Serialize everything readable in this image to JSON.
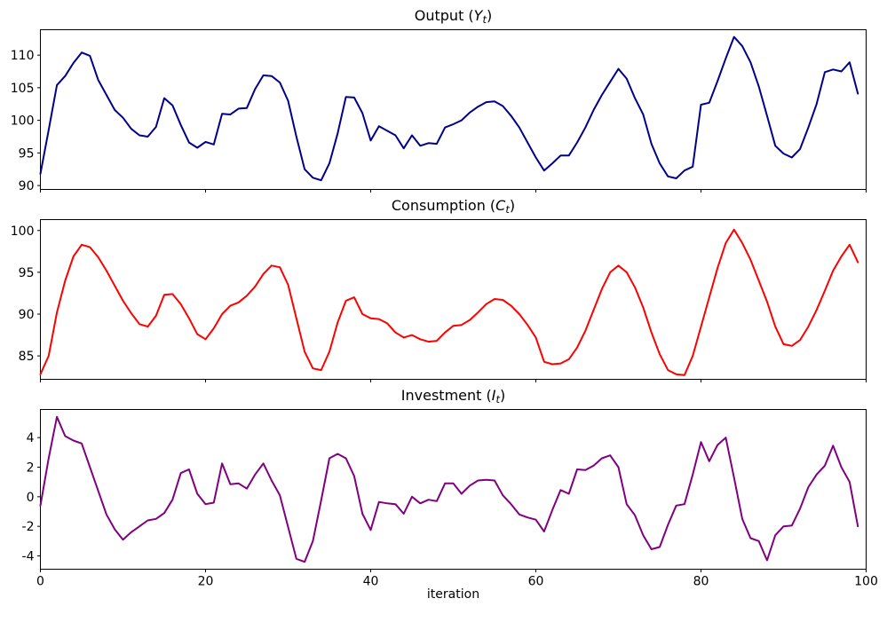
{
  "figure": {
    "background": "#ffffff",
    "border": "#000000"
  },
  "xlabel": "iteration",
  "chart_data": [
    {
      "id": "output",
      "type": "line",
      "title_prefix": "Output (",
      "title_var": "Y",
      "title_sub": "t",
      "title_suffix": ")",
      "color": "#00008b",
      "xlim": [
        0,
        100
      ],
      "ylim": [
        89.4,
        113.9
      ],
      "yticks": [
        90,
        95,
        100,
        105,
        110
      ],
      "xticks": [
        0,
        20,
        40,
        60,
        80,
        100
      ],
      "show_xtick_labels": false,
      "x_start": 0,
      "values": [
        91.8,
        98.5,
        105.4,
        106.8,
        108.8,
        110.4,
        109.9,
        106.2,
        103.9,
        101.6,
        100.4,
        98.7,
        97.7,
        97.5,
        99.0,
        103.4,
        102.3,
        99.3,
        96.6,
        95.8,
        96.7,
        96.3,
        101.0,
        100.9,
        101.8,
        101.9,
        104.8,
        106.9,
        106.8,
        105.8,
        103.0,
        97.5,
        92.5,
        91.2,
        90.8,
        93.4,
        98.0,
        103.6,
        103.5,
        101.1,
        96.9,
        99.1,
        98.4,
        97.7,
        95.7,
        97.7,
        96.1,
        96.5,
        96.4,
        98.9,
        99.4,
        100.0,
        101.2,
        102.1,
        102.8,
        102.9,
        102.2,
        100.7,
        98.9,
        96.6,
        94.3,
        92.3,
        93.4,
        94.6,
        94.6,
        96.6,
        98.9,
        101.6,
        103.9,
        105.9,
        107.9,
        106.4,
        103.4,
        100.9,
        96.4,
        93.4,
        91.4,
        91.1,
        92.3,
        92.9,
        102.4,
        102.7,
        106.0,
        109.5,
        112.8,
        111.4,
        108.9,
        105.2,
        100.7,
        96.1,
        94.9,
        94.3,
        95.6,
        98.9,
        102.5,
        107.4,
        107.8,
        107.5,
        108.9,
        104.1
      ]
    },
    {
      "id": "consumption",
      "type": "line",
      "title_prefix": "Consumption (",
      "title_var": "C",
      "title_sub": "t",
      "title_suffix": ")",
      "color": "#ff0000",
      "xlim": [
        0,
        100
      ],
      "ylim": [
        82.2,
        101.3
      ],
      "yticks": [
        85,
        90,
        95,
        100
      ],
      "xticks": [
        0,
        20,
        40,
        60,
        80,
        100
      ],
      "show_xtick_labels": false,
      "x_start": 0,
      "values": [
        82.8,
        85.0,
        90.2,
        94.0,
        96.9,
        98.3,
        98.0,
        96.8,
        95.2,
        93.4,
        91.6,
        90.1,
        88.8,
        88.5,
        89.8,
        92.3,
        92.4,
        91.2,
        89.5,
        87.6,
        87.0,
        88.3,
        90.0,
        91.0,
        91.4,
        92.2,
        93.3,
        94.8,
        95.8,
        95.6,
        93.5,
        89.5,
        85.5,
        83.5,
        83.3,
        85.5,
        89.0,
        91.6,
        92.0,
        90.0,
        89.5,
        89.4,
        88.9,
        87.8,
        87.2,
        87.5,
        87.0,
        86.7,
        86.8,
        87.8,
        88.6,
        88.7,
        89.3,
        90.2,
        91.2,
        91.8,
        91.7,
        91.0,
        90.0,
        88.7,
        87.2,
        84.3,
        84.0,
        84.1,
        84.6,
        86.0,
        88.0,
        90.5,
        93.0,
        95.0,
        95.8,
        95.0,
        93.2,
        90.8,
        87.8,
        85.2,
        83.3,
        82.8,
        82.7,
        85.0,
        88.5,
        92.0,
        95.5,
        98.5,
        100.1,
        98.5,
        96.5,
        94.0,
        91.5,
        88.5,
        86.4,
        86.2,
        86.9,
        88.5,
        90.5,
        92.8,
        95.2,
        96.9,
        98.3,
        96.2
      ]
    },
    {
      "id": "investment",
      "type": "line",
      "title_prefix": "Investment (",
      "title_var": "I",
      "title_sub": "t",
      "title_suffix": ")",
      "color": "#800080",
      "xlim": [
        0,
        100
      ],
      "ylim": [
        -4.9,
        5.9
      ],
      "yticks": [
        -4,
        -2,
        0,
        2,
        4
      ],
      "xticks": [
        0,
        20,
        40,
        60,
        80,
        100
      ],
      "show_xtick_labels": true,
      "xlabel": "iteration",
      "x_start": 0,
      "values": [
        -0.6,
        2.6,
        5.4,
        4.1,
        3.8,
        3.6,
        2.0,
        0.4,
        -1.2,
        -2.2,
        -2.9,
        -2.4,
        -2.0,
        -1.6,
        -1.5,
        -1.1,
        -0.2,
        1.6,
        1.85,
        0.2,
        -0.5,
        -0.4,
        2.25,
        0.85,
        0.9,
        0.55,
        1.5,
        2.25,
        1.1,
        0.1,
        -2.05,
        -4.2,
        -4.4,
        -3.0,
        -0.25,
        2.6,
        2.9,
        2.6,
        1.4,
        -1.15,
        -2.25,
        -0.35,
        -0.45,
        -0.5,
        -1.15,
        0.0,
        -0.45,
        -0.2,
        -0.3,
        0.9,
        0.9,
        0.2,
        0.75,
        1.1,
        1.15,
        1.1,
        0.1,
        -0.5,
        -1.2,
        -1.4,
        -1.55,
        -2.35,
        -0.9,
        0.45,
        0.2,
        1.85,
        1.8,
        2.1,
        2.6,
        2.8,
        2.0,
        -0.5,
        -1.25,
        -2.6,
        -3.55,
        -3.4,
        -1.9,
        -0.6,
        -0.5,
        1.5,
        3.7,
        2.4,
        3.5,
        4.0,
        1.3,
        -1.5,
        -2.8,
        -3.0,
        -4.3,
        -2.6,
        -2.0,
        -1.95,
        -0.8,
        0.65,
        1.5,
        2.1,
        3.45,
        2.0,
        1.0,
        -2.0
      ]
    }
  ]
}
